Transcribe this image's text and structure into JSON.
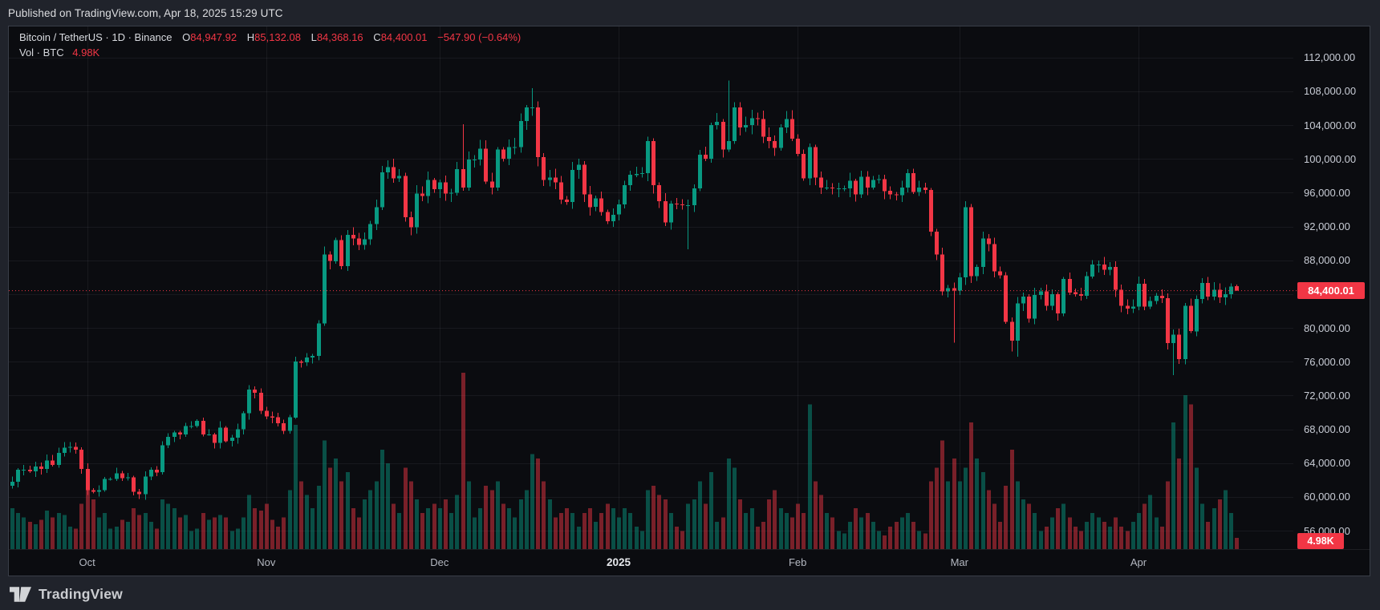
{
  "published_bar": {
    "text": "Published on TradingView.com, Apr 18, 2025 15:29 UTC"
  },
  "legend": {
    "title": "Bitcoin / TetherUS · 1D · Binance",
    "ohlc": {
      "o_label": "O",
      "o": "84,947.92",
      "h_label": "H",
      "h": "85,132.08",
      "l_label": "L",
      "l": "84,368.16",
      "c_label": "C",
      "c": "84,400.01",
      "change": "−547.90 (−0.64%)"
    },
    "volume_row": {
      "label": "Vol · BTC",
      "value": "4.98K"
    }
  },
  "price_badge": {
    "text": "84,400.01",
    "color": "#f23645"
  },
  "volume_badge": {
    "text": "4.98K",
    "color": "#f23645"
  },
  "footer": {
    "brand": "TradingView"
  },
  "colors": {
    "panel_bg": "#0b0c10",
    "page_bg": "#20232b",
    "grid": "rgba(240,243,250,0.06)",
    "up": "#089981",
    "down": "#f23645",
    "volume_up": "rgba(8,153,129,0.48)",
    "volume_down": "rgba(242,54,69,0.48)",
    "last_price_line": "#f23645",
    "axis_text": "#c9cdd6"
  },
  "chart_data": {
    "type": "candlestick+volume",
    "title": "Bitcoin / TetherUS · 1D · Binance",
    "symbol": "Bitcoin / TetherUS",
    "interval": "1D",
    "exchange": "Binance",
    "start_date": "2024-09-18",
    "end_date": "2025-04-18",
    "price_axis_range": [
      56000,
      112000
    ],
    "grid_values": [
      56000,
      60000,
      64000,
      68000,
      72000,
      76000,
      80000,
      84000,
      88000,
      92000,
      96000,
      100000,
      104000,
      108000,
      112000
    ],
    "price_ticks": [
      {
        "v": 112000,
        "t": "112,000.00"
      },
      {
        "v": 108000,
        "t": "108,000.00"
      },
      {
        "v": 104000,
        "t": "104,000.00"
      },
      {
        "v": 100000,
        "t": "100,000.00"
      },
      {
        "v": 96000,
        "t": "96,000.00"
      },
      {
        "v": 92000,
        "t": "92,000.00"
      },
      {
        "v": 88000,
        "t": "88,000.00"
      },
      {
        "v": 80000,
        "t": "80,000.00"
      },
      {
        "v": 76000,
        "t": "76,000.00"
      },
      {
        "v": 72000,
        "t": "72,000.00"
      },
      {
        "v": 68000,
        "t": "68,000.00"
      },
      {
        "v": 64000,
        "t": "64,000.00"
      },
      {
        "v": 60000,
        "t": "60,000.00"
      },
      {
        "v": 56000,
        "t": "56,000.00"
      }
    ],
    "month_ticks": [
      {
        "label": "Oct",
        "index": 13
      },
      {
        "label": "Nov",
        "index": 44
      },
      {
        "label": "Dec",
        "index": 74
      },
      {
        "label": "2025",
        "index": 105,
        "bold": true
      },
      {
        "label": "Feb",
        "index": 136
      },
      {
        "label": "Mar",
        "index": 164
      },
      {
        "label": "Apr",
        "index": 195
      }
    ],
    "first_open_k": 61.3,
    "close_k": [
      61.8,
      63.2,
      63.2,
      63.0,
      63.6,
      63.3,
      64.3,
      63.8,
      65.2,
      65.8,
      65.9,
      65.6,
      63.3,
      60.8,
      60.6,
      60.8,
      62.1,
      62.1,
      62.8,
      62.2,
      62.3,
      60.6,
      60.3,
      62.4,
      63.2,
      62.9,
      66.1,
      67.1,
      67.6,
      67.4,
      68.4,
      68.4,
      69.0,
      67.4,
      67.4,
      66.4,
      68.2,
      66.6,
      67.0,
      68.0,
      69.9,
      72.7,
      72.3,
      70.2,
      69.5,
      69.4,
      68.7,
      67.8,
      69.4,
      76.0,
      75.9,
      76.5,
      76.7,
      80.5,
      88.7,
      87.9,
      90.4,
      87.3,
      91.0,
      90.6,
      89.8,
      90.5,
      92.3,
      94.3,
      98.4,
      99.0,
      97.7,
      98.0,
      93.1,
      91.9,
      95.9,
      95.6,
      97.5,
      96.4,
      97.2,
      95.9,
      96.0,
      98.8,
      96.6,
      99.9,
      99.9,
      101.2,
      97.3,
      96.6,
      101.1,
      100.0,
      101.4,
      101.4,
      104.5,
      106.1,
      106.1,
      100.2,
      97.5,
      97.8,
      97.2,
      95.2,
      94.9,
      98.7,
      99.3,
      95.8,
      94.3,
      95.3,
      93.7,
      92.6,
      93.4,
      94.6,
      96.9,
      98.1,
      98.2,
      98.3,
      102.1,
      96.9,
      95.0,
      92.5,
      94.7,
      94.6,
      94.5,
      94.5,
      96.5,
      100.5,
      100.0,
      104.0,
      104.4,
      101.1,
      102.1,
      106.1,
      103.7,
      104.0,
      104.8,
      104.7,
      102.6,
      102.1,
      101.3,
      103.7,
      104.7,
      102.4,
      100.6,
      97.7,
      101.4,
      97.8,
      96.6,
      96.6,
      96.5,
      96.5,
      96.5,
      97.4,
      95.8,
      97.9,
      96.6,
      97.5,
      97.6,
      96.2,
      95.8,
      95.7,
      96.6,
      98.3,
      96.1,
      96.6,
      96.3,
      91.4,
      88.7,
      84.3,
      84.7,
      84.4,
      86.0,
      94.3,
      86.1,
      87.2,
      90.6,
      89.9,
      86.7,
      86.2,
      80.7,
      78.5,
      82.9,
      83.7,
      81.1,
      83.9,
      84.3,
      82.6,
      84.0,
      81.7,
      85.8,
      84.2,
      84.0,
      83.8,
      86.1,
      87.5,
      87.5,
      86.9,
      87.2,
      84.5,
      82.6,
      82.3,
      82.5,
      85.2,
      82.5,
      83.2,
      83.8,
      83.5,
      78.2,
      79.2,
      76.3,
      82.6,
      79.6,
      83.4,
      85.3,
      83.7,
      84.5,
      83.6,
      84.0,
      84.9,
      84.4
    ],
    "volume_k": [
      18,
      16,
      14,
      12,
      11,
      13,
      17,
      14,
      16,
      15,
      10,
      9,
      20,
      27,
      22,
      14,
      16,
      9,
      10,
      13,
      12,
      18,
      15,
      16,
      12,
      9,
      22,
      20,
      18,
      14,
      15,
      8,
      9,
      16,
      13,
      14,
      15,
      14,
      8,
      9,
      14,
      24,
      18,
      17,
      20,
      13,
      10,
      14,
      26,
      55,
      30,
      24,
      18,
      28,
      48,
      36,
      40,
      30,
      34,
      18,
      14,
      22,
      26,
      30,
      44,
      38,
      20,
      16,
      36,
      30,
      22,
      16,
      18,
      20,
      18,
      22,
      16,
      24,
      78,
      30,
      14,
      18,
      28,
      26,
      30,
      20,
      18,
      14,
      22,
      26,
      42,
      40,
      30,
      22,
      14,
      16,
      18,
      16,
      10,
      16,
      18,
      12,
      16,
      20,
      18,
      14,
      18,
      16,
      10,
      8,
      26,
      28,
      24,
      22,
      16,
      10,
      8,
      20,
      22,
      30,
      20,
      34,
      12,
      14,
      40,
      36,
      22,
      16,
      18,
      10,
      12,
      22,
      26,
      18,
      16,
      14,
      20,
      16,
      64,
      30,
      24,
      16,
      14,
      8,
      7,
      12,
      18,
      14,
      16,
      12,
      8,
      6,
      10,
      12,
      14,
      16,
      12,
      8,
      7,
      30,
      36,
      48,
      30,
      40,
      30,
      36,
      56,
      40,
      34,
      26,
      20,
      12,
      28,
      44,
      30,
      22,
      20,
      16,
      8,
      10,
      14,
      18,
      20,
      14,
      10,
      8,
      12,
      16,
      14,
      12,
      10,
      14,
      10,
      8,
      12,
      16,
      20,
      24,
      14,
      10,
      30,
      56,
      40,
      68,
      64,
      36,
      20,
      12,
      18,
      22,
      26,
      16,
      4.98
    ],
    "wick_overrides": {
      "78": {
        "high_k": 104.1
      },
      "90": {
        "high_k": 108.37
      },
      "117": {
        "low_k": 89.3
      },
      "124": {
        "high_k": 109.29
      },
      "163": {
        "low_k": 78.25
      },
      "165": {
        "high_k": 95.0
      },
      "173": {
        "low_k": 77.2
      },
      "174": {
        "low_k": 76.6
      },
      "201": {
        "low_k": 74.4
      },
      "203": {
        "low_k": 75.7
      }
    },
    "last_candle": {
      "open": 84947.92,
      "high": 85132.08,
      "low": 84368.16,
      "close": 84400.01,
      "change": -547.9,
      "change_pct": -0.64
    },
    "last_volume_k": 4.98
  }
}
